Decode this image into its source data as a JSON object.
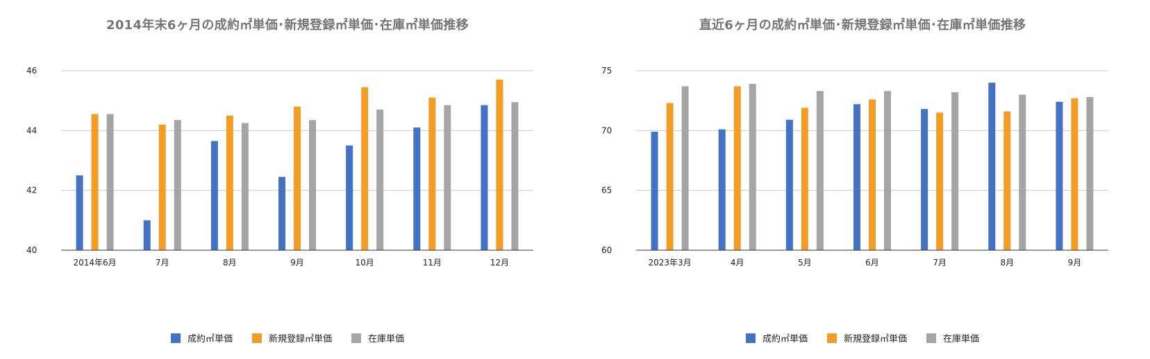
{
  "colors": {
    "series1": "#4472C4",
    "series2": "#F39C26",
    "series3": "#A5A5A5",
    "grid": "#CCCCCC",
    "baseline": "#333333"
  },
  "chart_data": [
    {
      "type": "bar",
      "title": "2014年末6ヶ月の成約㎡単価･新規登録㎡単価･在庫㎡単価推移",
      "categories": [
        "2014年6月",
        "7月",
        "8月",
        "9月",
        "10月",
        "11月",
        "12月"
      ],
      "ylim": [
        40,
        46
      ],
      "yticks": [
        40,
        42,
        44,
        46
      ],
      "grid": true,
      "legend_position": "bottom",
      "series": [
        {
          "name": "成約㎡単価",
          "values": [
            42.5,
            41.0,
            43.65,
            42.45,
            43.5,
            44.1,
            44.85
          ]
        },
        {
          "name": "新規登録㎡単価",
          "values": [
            44.55,
            44.2,
            44.5,
            44.8,
            45.45,
            45.1,
            45.7
          ]
        },
        {
          "name": "在庫単価",
          "values": [
            44.55,
            44.35,
            44.25,
            44.35,
            44.7,
            44.85,
            44.95
          ]
        }
      ]
    },
    {
      "type": "bar",
      "title": "直近6ヶ月の成約㎡単価･新規登録㎡単価･在庫㎡単価推移",
      "categories": [
        "2023年3月",
        "4月",
        "5月",
        "6月",
        "7月",
        "8月",
        "9月"
      ],
      "ylim": [
        60,
        75
      ],
      "yticks": [
        60,
        65,
        70,
        75
      ],
      "grid": true,
      "legend_position": "bottom",
      "series": [
        {
          "name": "成約㎡単価",
          "values": [
            69.9,
            70.1,
            70.9,
            72.2,
            71.8,
            74.0,
            72.4
          ]
        },
        {
          "name": "新規登録㎡単価",
          "values": [
            72.3,
            73.7,
            71.9,
            72.6,
            71.5,
            71.6,
            72.7
          ]
        },
        {
          "name": "在庫単価",
          "values": [
            73.7,
            73.9,
            73.3,
            73.3,
            73.2,
            73.0,
            72.8
          ]
        }
      ]
    }
  ]
}
